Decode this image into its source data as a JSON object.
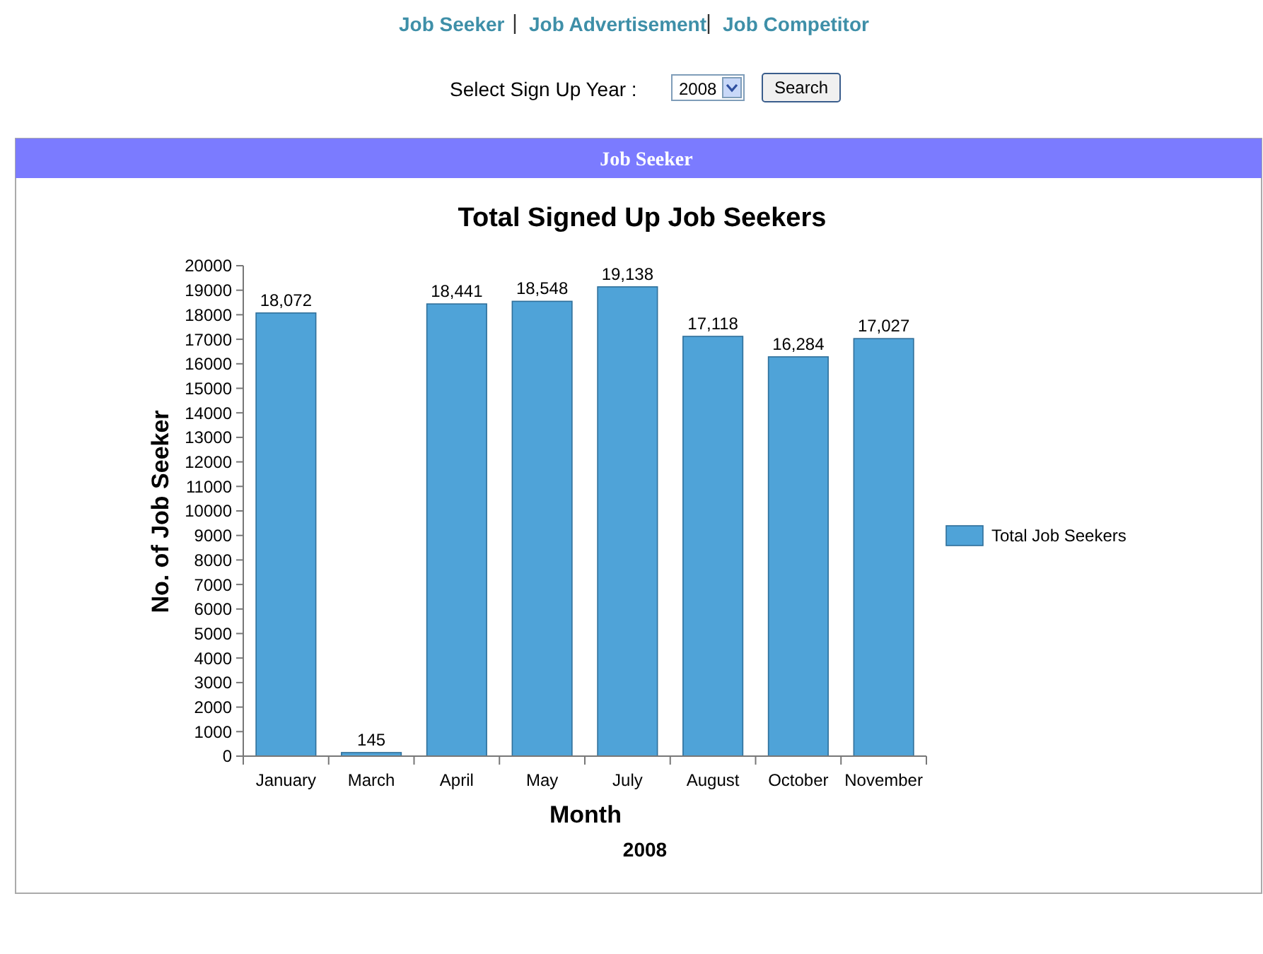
{
  "chart_data": {
    "type": "bar",
    "title": "Total Signed Up Job Seekers",
    "xlabel": "Month",
    "ylabel": "No. of Job Seeker",
    "categories": [
      "January",
      "March",
      "April",
      "May",
      "July",
      "August",
      "October",
      "November"
    ],
    "series": [
      {
        "name": "Total Job Seekers",
        "color": "#4fa3d8",
        "values": [
          18072,
          145,
          18441,
          18548,
          19138,
          17118,
          16284,
          17027
        ],
        "value_labels": [
          "18,072",
          "145",
          "18,441",
          "18,548",
          "19,138",
          "17,118",
          "16,284",
          "17,027"
        ]
      }
    ],
    "ylim": [
      0,
      20000
    ],
    "yticks": [
      0,
      1000,
      2000,
      3000,
      4000,
      5000,
      6000,
      7000,
      8000,
      9000,
      10000,
      11000,
      12000,
      13000,
      14000,
      15000,
      16000,
      17000,
      18000,
      19000,
      20000
    ],
    "grid": false,
    "legend": "right",
    "annotations": [
      "Job Seeker",
      "Job Advertisement",
      "Job Competitor",
      "Select Sign Up Year :",
      "2008",
      "Search",
      "Job Seeker",
      "2008"
    ]
  }
}
